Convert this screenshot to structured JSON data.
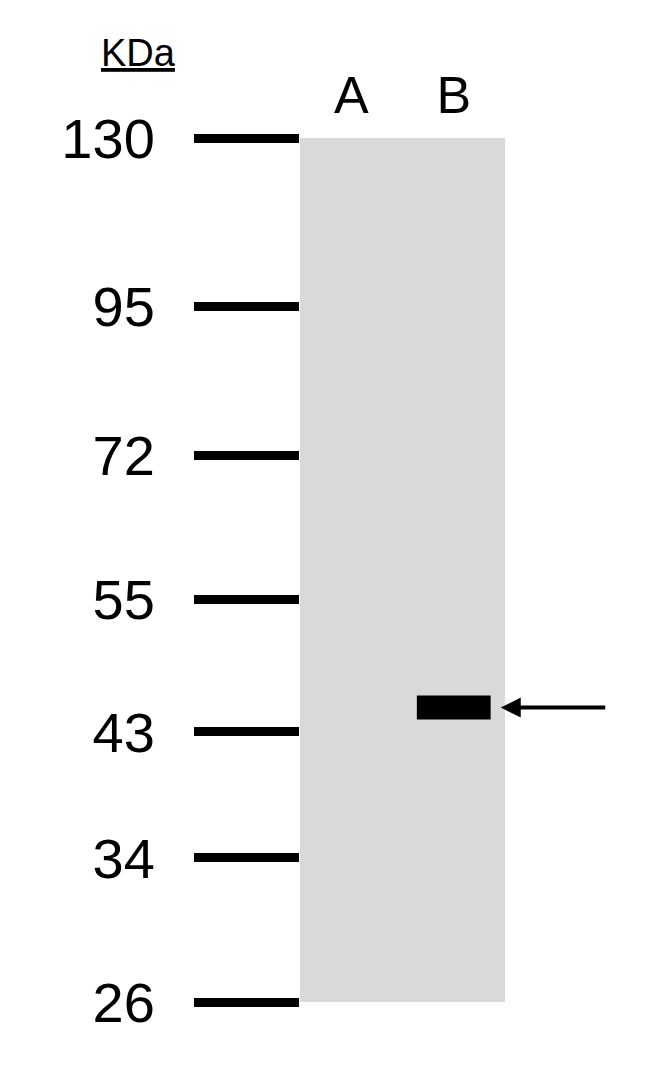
{
  "chart_data": {
    "type": "blot",
    "y_label": "KDa",
    "categories": [
      "A",
      "B"
    ],
    "values": [
      null,
      45
    ],
    "ylim": [
      26,
      130
    ],
    "yticks": [
      26,
      34,
      43,
      55,
      72,
      95,
      130
    ],
    "log": "y",
    "grid": false,
    "color": "#000000"
  }
}
